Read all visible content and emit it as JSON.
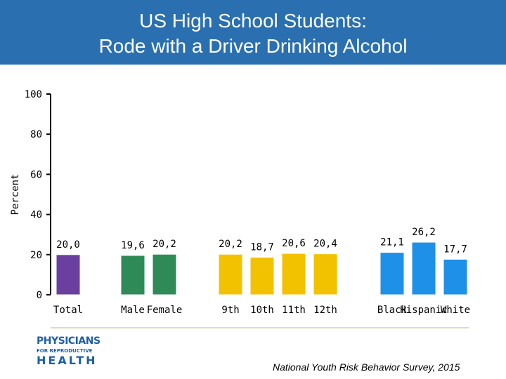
{
  "header": {
    "title_line1": "US High School Students:",
    "title_line2": "Rode with a Driver Drinking Alcohol"
  },
  "chart_data": {
    "type": "bar",
    "title": "US High School Students: Rode with a Driver Drinking Alcohol",
    "ylabel": "Percent",
    "xlabel": "",
    "ylim": [
      0,
      100
    ],
    "yticks": [
      0,
      20,
      40,
      60,
      80,
      100
    ],
    "grid": false,
    "groups": [
      {
        "categories": [
          "Total"
        ],
        "values": [
          20.0
        ],
        "labels": [
          "20,0"
        ],
        "color": "#6a3fa0"
      },
      {
        "categories": [
          "Male",
          "Female"
        ],
        "values": [
          19.6,
          20.2
        ],
        "labels": [
          "19,6",
          "20,2"
        ],
        "color": "#2e8b57"
      },
      {
        "categories": [
          "9th",
          "10th",
          "11th",
          "12th"
        ],
        "values": [
          20.2,
          18.7,
          20.6,
          20.4
        ],
        "labels": [
          "20,2",
          "18,7",
          "20,6",
          "20,4"
        ],
        "color": "#f2c200"
      },
      {
        "categories": [
          "Black",
          "Hispanic",
          "White"
        ],
        "values": [
          21.1,
          26.2,
          17.7
        ],
        "labels": [
          "21,1",
          "26,2",
          "17,7"
        ],
        "color": "#1e90e8"
      }
    ]
  },
  "footer": {
    "source": "National Youth Risk Behavior Survey, 2015",
    "logo_line1": "PHYSICIANS",
    "logo_line2": "FOR REPRODUCTIVE",
    "logo_line3": "HEALTH"
  }
}
